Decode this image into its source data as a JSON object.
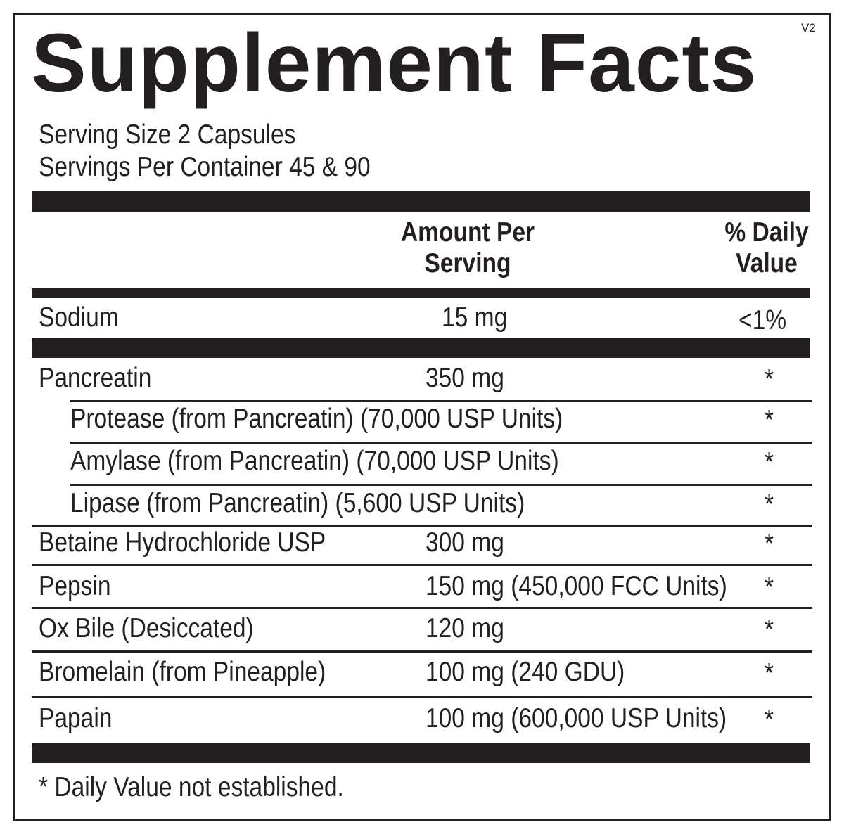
{
  "title": "Supplement Facts",
  "version": "V2",
  "serving_size": "Serving Size  2 Capsules",
  "servings_per_container": "Servings Per Container  45 & 90",
  "header": {
    "amount_line1": "Amount Per",
    "amount_line2": "Serving",
    "dv_line1": "% Daily",
    "dv_line2": "Value"
  },
  "sodium": {
    "name": "Sodium",
    "amount": "15 mg",
    "dv": "<1%"
  },
  "rows": [
    {
      "name": "Pancreatin",
      "amount": "350 mg",
      "dv": "*"
    },
    {
      "name": "Protease (from Pancreatin) (70,000 USP Units)",
      "amount": "",
      "dv": "*"
    },
    {
      "name": "Amylase (from Pancreatin) (70,000 USP Units)",
      "amount": "",
      "dv": "*"
    },
    {
      "name": "Lipase (from Pancreatin) (5,600 USP Units)",
      "amount": "",
      "dv": "*"
    },
    {
      "name": "Betaine Hydrochloride USP",
      "amount": "300 mg",
      "dv": "*"
    },
    {
      "name": "Pepsin",
      "amount": "150 mg (450,000 FCC Units)",
      "dv": "*"
    },
    {
      "name": "Ox Bile (Desiccated)",
      "amount": "120 mg",
      "dv": "*"
    },
    {
      "name": "Bromelain (from Pineapple)",
      "amount": "100 mg (240 GDU)",
      "dv": "*"
    },
    {
      "name": "Papain",
      "amount": "100 mg (600,000 USP Units)",
      "dv": "*"
    }
  ],
  "footnote": "* Daily Value not established."
}
